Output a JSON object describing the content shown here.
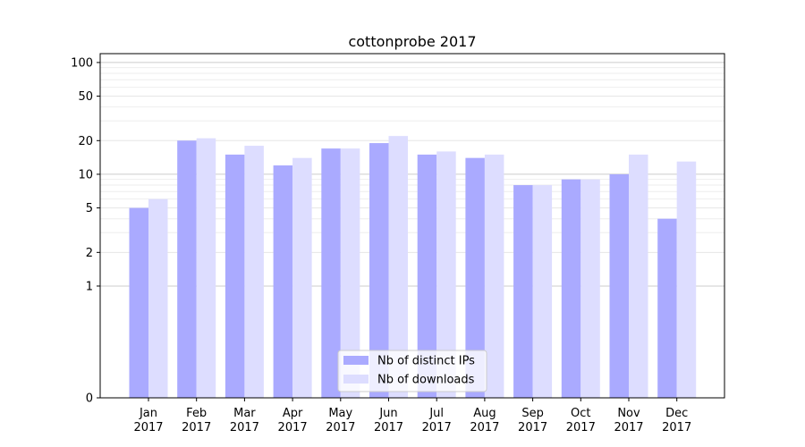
{
  "chart_data": {
    "type": "bar",
    "title": "cottonprobe 2017",
    "xlabel": "",
    "ylabel": "",
    "y_scale": "symlog",
    "ylim": [
      0,
      120
    ],
    "y_ticks": [
      0,
      1,
      2,
      5,
      10,
      20,
      50,
      100
    ],
    "y_tick_labels": [
      "0",
      "1",
      "2",
      "5",
      "10",
      "20",
      "50",
      "100"
    ],
    "categories": [
      [
        "Jan",
        "2017"
      ],
      [
        "Feb",
        "2017"
      ],
      [
        "Mar",
        "2017"
      ],
      [
        "Apr",
        "2017"
      ],
      [
        "May",
        "2017"
      ],
      [
        "Jun",
        "2017"
      ],
      [
        "Jul",
        "2017"
      ],
      [
        "Aug",
        "2017"
      ],
      [
        "Sep",
        "2017"
      ],
      [
        "Oct",
        "2017"
      ],
      [
        "Nov",
        "2017"
      ],
      [
        "Dec",
        "2017"
      ]
    ],
    "series": [
      {
        "name": "Nb of distinct IPs",
        "color": "#aaaaff",
        "values": [
          5,
          20,
          15,
          12,
          17,
          19,
          15,
          14,
          8,
          9,
          10,
          4
        ]
      },
      {
        "name": "Nb of downloads",
        "color": "#ddddff",
        "values": [
          6,
          21,
          18,
          14,
          17,
          22,
          16,
          15,
          8,
          9,
          15,
          13
        ]
      }
    ],
    "grid": true,
    "legend_position": "bottom-center"
  }
}
